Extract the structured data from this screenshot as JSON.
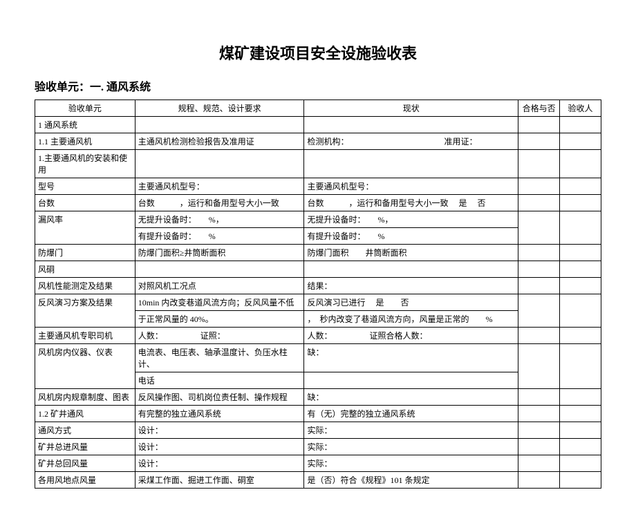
{
  "title": "煤矿建设项目安全设施验收表",
  "subtitle": "验收单元：一. 通风系统",
  "headers": {
    "c1": "验收单元",
    "c2": "规程、规范、设计要求",
    "c3": "现状",
    "c4": "合格与否",
    "c5": "验收人"
  },
  "rows": [
    {
      "c1": "1 通风系统",
      "c2": "",
      "c3": "",
      "span": true
    },
    {
      "c1": "1.1 主要通风机",
      "c2": "主通风机检测检验报告及准用证",
      "c3": "检测机构：　　　　　　　　　　　　准用证："
    },
    {
      "c1": "1.主要通风机的安装和使用",
      "c2": "",
      "c3": ""
    },
    {
      "c1": "型号",
      "c2": "主要通风机型号：",
      "c3": "主要通风机型号："
    },
    {
      "c1": "台数",
      "c2": "台数　　　，运行和备用型号大小一致",
      "c3": "台数　　　，运行和备用型号大小一致　 是　 否"
    },
    {
      "c1": "漏风率",
      "c2": "无提升设备时：　　%，",
      "c3": "无提升设备时：　　%，",
      "rowspan": 2
    },
    {
      "c2": "有提升设备时：　　%",
      "c3": "有提升设备时：　　%",
      "continue": true
    },
    {
      "c1": "防爆门",
      "c2": "防爆门面积≥井筒断面积",
      "c3": "防爆门面积　　井筒断面积"
    },
    {
      "c1": "风硐",
      "c2": "",
      "c3": ""
    },
    {
      "c1": "风机性能测定及结果",
      "c2": "对照风机工况点",
      "c3": "结果："
    },
    {
      "c1": "反风演习方案及结果",
      "c2": "10min 内改变巷道风流方向；反风风量不低",
      "c3": "反风演习已进行　 是　　否",
      "rowspan": 2
    },
    {
      "c2": "于正常风量的 40%。",
      "c3": "，　秒内改变了巷道风流方向，风量是正常的　　%",
      "continue": true
    },
    {
      "c1": "主要通风机专职司机",
      "c2": "人数：　　　　　证照：",
      "c3": "人数：　　　　　证照合格人数："
    },
    {
      "c1": "风机房内仪器、仪表",
      "c2": "电流表、电压表、轴承温度计、负压水柱计、",
      "c3": "缺：",
      "rowspan": 2
    },
    {
      "c2": "电话",
      "c3": "",
      "continue": true
    },
    {
      "c1": "风机房内规章制度、图表",
      "c2": "反风操作图、司机岗位责任制、操作规程",
      "c3": "缺："
    },
    {
      "c1": "1.2 矿井通风",
      "c2": "有完整的独立通风系统",
      "c3": "有（无）完整的独立通风系统"
    },
    {
      "c1": "通风方式",
      "c2": "设计：",
      "c3": "实际："
    },
    {
      "c1": "矿井总进风量",
      "c2": "设计：",
      "c3": "实际："
    },
    {
      "c1": "矿井总回风量",
      "c2": "设计：",
      "c3": "实际："
    },
    {
      "c1": "各用风地点风量",
      "c2": "采煤工作面、掘进工作面、硐室",
      "c3": "是（否）符合《规程》101 条规定"
    }
  ]
}
